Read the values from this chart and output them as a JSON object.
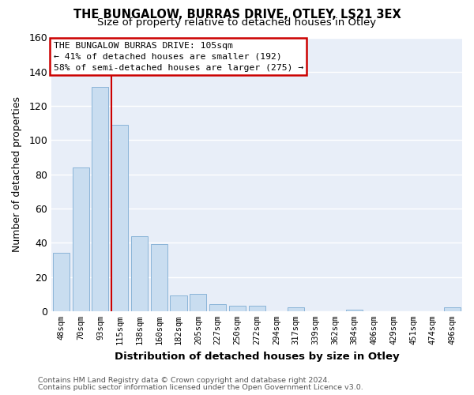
{
  "title1": "THE BUNGALOW, BURRAS DRIVE, OTLEY, LS21 3EX",
  "title2": "Size of property relative to detached houses in Otley",
  "xlabel": "Distribution of detached houses by size in Otley",
  "ylabel": "Number of detached properties",
  "bar_labels": [
    "48sqm",
    "70sqm",
    "93sqm",
    "115sqm",
    "138sqm",
    "160sqm",
    "182sqm",
    "205sqm",
    "227sqm",
    "250sqm",
    "272sqm",
    "294sqm",
    "317sqm",
    "339sqm",
    "362sqm",
    "384sqm",
    "406sqm",
    "429sqm",
    "451sqm",
    "474sqm",
    "496sqm"
  ],
  "bar_values": [
    34,
    84,
    131,
    109,
    44,
    39,
    9,
    10,
    4,
    3,
    3,
    0,
    2,
    0,
    0,
    1,
    0,
    0,
    0,
    0,
    2
  ],
  "bar_color": "#c9ddf0",
  "bar_edgecolor": "#8ab4d8",
  "vline_color": "#cc0000",
  "vline_pos": 2.57,
  "annotation_text": "THE BUNGALOW BURRAS DRIVE: 105sqm\n← 41% of detached houses are smaller (192)\n58% of semi-detached houses are larger (275) →",
  "ylim": [
    0,
    160
  ],
  "yticks": [
    0,
    20,
    40,
    60,
    80,
    100,
    120,
    140,
    160
  ],
  "footer1": "Contains HM Land Registry data © Crown copyright and database right 2024.",
  "footer2": "Contains public sector information licensed under the Open Government Licence v3.0.",
  "plot_bg": "#e8eef8",
  "fig_bg": "#ffffff",
  "grid_color": "#ffffff"
}
